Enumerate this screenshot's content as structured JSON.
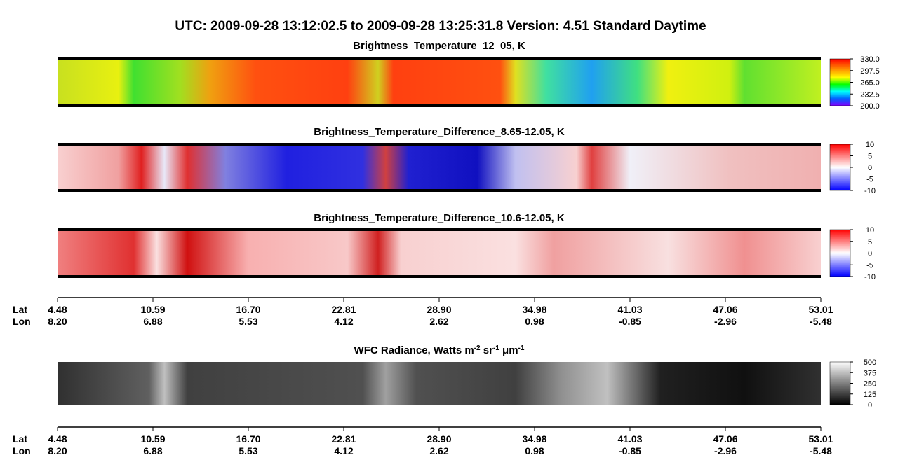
{
  "title": "UTC:  2009-09-28   13:12:02.5  to  2009-09-28   13:25:31.8    Version: 4.51  Standard Daytime",
  "panels": [
    {
      "title": "Brightness_Temperature_12_05, K",
      "colorbar_ticks": [
        "330.0",
        "297.5",
        "265.0",
        "232.5",
        "200.0"
      ]
    },
    {
      "title": "Brightness_Temperature_Difference_8.65-12.05, K",
      "colorbar_ticks": [
        "10",
        "5",
        "0",
        "-5",
        "-10"
      ]
    },
    {
      "title": "Brightness_Temperature_Difference_10.6-12.05, K",
      "colorbar_ticks": [
        "10",
        "5",
        "0",
        "-5",
        "-10"
      ]
    },
    {
      "title_parts": [
        "WFC Radiance, Watts m",
        "-2",
        " sr",
        "-1",
        " μm",
        "-1"
      ],
      "colorbar_ticks": [
        "500",
        "375",
        "250",
        "125",
        "0"
      ]
    }
  ],
  "axis": {
    "lat_label": "Lat",
    "lon_label": "Lon",
    "lat": [
      "4.48",
      "10.59",
      "16.70",
      "22.81",
      "28.90",
      "34.98",
      "41.03",
      "47.06",
      "53.01"
    ],
    "lon": [
      "8.20",
      "6.88",
      "5.53",
      "4.12",
      "2.62",
      "0.98",
      "-0.85",
      "-2.96",
      "-5.48"
    ]
  }
}
